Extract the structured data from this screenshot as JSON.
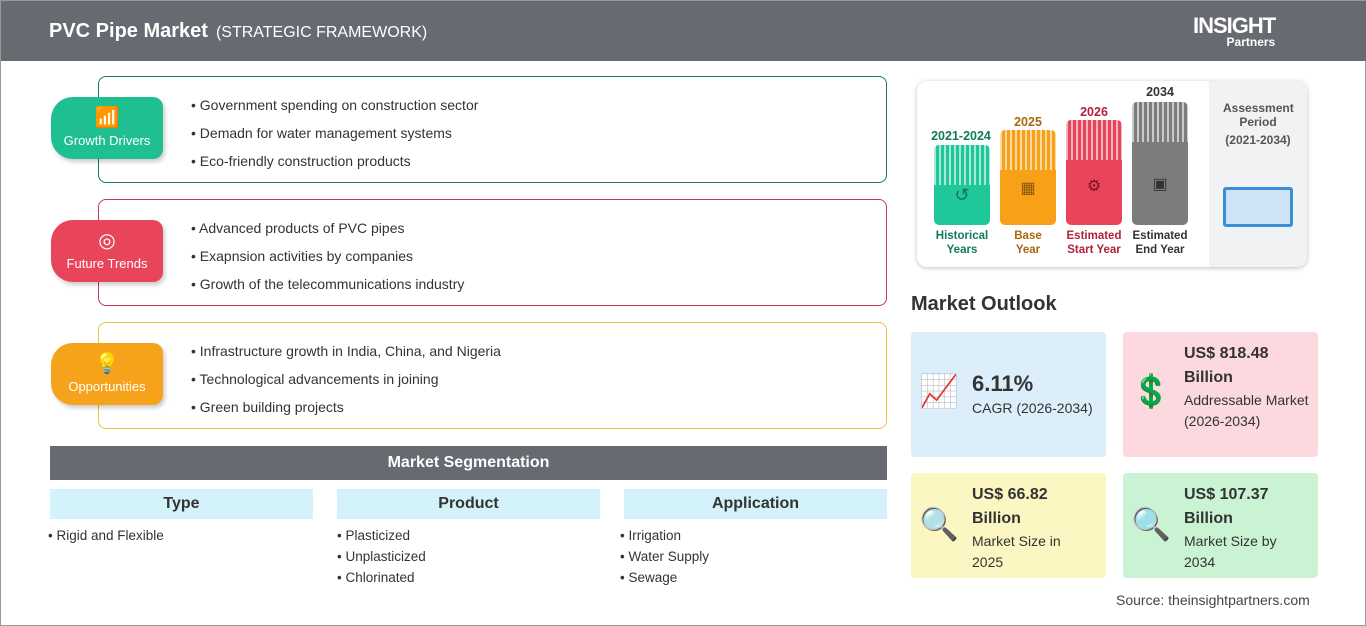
{
  "header": {
    "title": "PVC Pipe Market",
    "subtitle": "(STRATEGIC FRAMEWORK)",
    "logo": "The INSIGHT Partners"
  },
  "sections": [
    {
      "label": "Growth Drivers",
      "color": "#1fbf91",
      "border": "#137a6a",
      "items": [
        "Government spending on construction sector",
        "Demadn for water management systems",
        "Eco-friendly construction products"
      ]
    },
    {
      "label": "Future Trends",
      "color": "#e8455a",
      "border": "#c23a4c",
      "items": [
        "Advanced products of PVC pipes",
        "Exapnsion activities by companies",
        "Growth of the telecommunications industry"
      ]
    },
    {
      "label": "Opportunities",
      "color": "#f7a21b",
      "border": "#efc23a",
      "items": [
        "Infrastructure growth in India, China, and Nigeria",
        "Technological advancements in joining",
        "Green building projects"
      ]
    }
  ],
  "segmentation": {
    "title": "Market Segmentation",
    "columns": [
      {
        "header": "Type",
        "items": [
          "Rigid and Flexible"
        ]
      },
      {
        "header": "Product",
        "items": [
          "Plasticized",
          "Unplasticized",
          "Chlorinated"
        ]
      },
      {
        "header": "Application",
        "items": [
          "Irrigation",
          "Water Supply",
          "Sewage"
        ]
      }
    ]
  },
  "assessment": {
    "title": "Assessment Period",
    "range": "(2021-2034)",
    "bars": [
      {
        "year": "2021-2024",
        "label": "Historical Years",
        "color": "#1fc79a",
        "text": "#127a5e"
      },
      {
        "year": "2025",
        "label": "Base Year",
        "color": "#f9a019",
        "text": "#a8670c"
      },
      {
        "year": "2026",
        "label": "Estimated Start Year",
        "color": "#e8455a",
        "text": "#b0223a"
      },
      {
        "year": "2034",
        "label": "Estimated End Year",
        "color": "#7c7c7c",
        "text": "#333333"
      }
    ]
  },
  "outlook": {
    "title": "Market Outlook",
    "cards": [
      {
        "value": "6.11%",
        "label": "CAGR (2026-2034)",
        "bg": "#dbeefa"
      },
      {
        "value": "US$ 818.48 Billion",
        "label": "Addressable Market (2026-2034)",
        "bg": "#fbd9de"
      },
      {
        "value": "US$ 66.82 Billion",
        "label": "Market Size in 2025",
        "bg": "#fbf6c2"
      },
      {
        "value": "US$ 107.37 Billion",
        "label": "Market Size by 2034",
        "bg": "#c9f3d3"
      }
    ]
  },
  "source": "Source: theinsightpartners.com"
}
